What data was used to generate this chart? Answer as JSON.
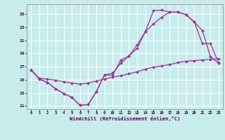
{
  "xlabel": "Windchill (Refroidissement éolien,°C)",
  "bg_color": "#c8ecec",
  "line_color": "#993399",
  "grid_color": "#aadddd",
  "xlim": [
    -0.5,
    23.5
  ],
  "ylim": [
    10.5,
    26.5
  ],
  "yticks": [
    11,
    13,
    15,
    17,
    19,
    21,
    23,
    25
  ],
  "xticks": [
    0,
    1,
    2,
    3,
    4,
    5,
    6,
    7,
    8,
    9,
    10,
    11,
    12,
    13,
    14,
    15,
    16,
    17,
    18,
    19,
    20,
    21,
    22,
    23
  ],
  "line1_x": [
    0,
    1,
    2,
    3,
    4,
    5,
    6,
    7,
    8,
    9,
    10,
    11,
    12,
    13,
    14,
    15,
    16,
    17,
    18,
    19,
    20,
    21,
    22,
    23
  ],
  "line1_y": [
    16.5,
    15.1,
    14.6,
    13.6,
    12.9,
    12.3,
    11.1,
    11.2,
    13.2,
    15.7,
    15.7,
    18.0,
    18.6,
    19.8,
    22.3,
    25.5,
    25.6,
    25.3,
    25.3,
    24.9,
    23.8,
    20.5,
    20.5,
    17.5
  ],
  "line2_x": [
    0,
    1,
    2,
    3,
    4,
    5,
    6,
    7,
    8,
    9,
    10,
    11,
    12,
    13,
    14,
    15,
    16,
    17,
    18,
    19,
    20,
    21,
    22,
    23
  ],
  "line2_y": [
    16.5,
    15.1,
    14.6,
    13.6,
    12.9,
    12.3,
    11.1,
    11.2,
    13.2,
    15.7,
    16.0,
    17.5,
    18.6,
    20.3,
    22.3,
    23.5,
    24.5,
    25.3,
    25.3,
    24.9,
    23.8,
    22.5,
    18.5,
    17.5
  ],
  "line3_x": [
    0,
    1,
    2,
    3,
    4,
    5,
    6,
    7,
    8,
    9,
    10,
    11,
    12,
    13,
    14,
    15,
    16,
    17,
    18,
    19,
    20,
    21,
    22,
    23
  ],
  "line3_y": [
    16.5,
    15.2,
    15.1,
    14.9,
    14.7,
    14.5,
    14.3,
    14.5,
    14.8,
    15.1,
    15.4,
    15.6,
    15.9,
    16.2,
    16.6,
    16.9,
    17.1,
    17.3,
    17.6,
    17.8,
    17.9,
    18.0,
    18.1,
    18.2
  ]
}
